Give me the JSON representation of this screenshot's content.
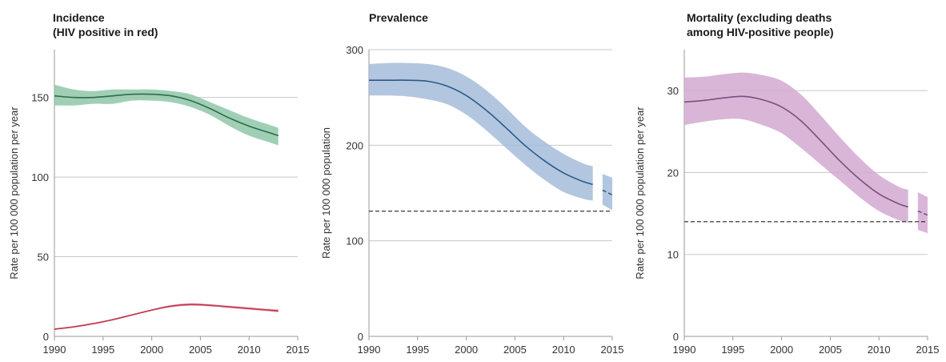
{
  "chart_data": [
    {
      "type": "area",
      "title_lines": [
        "Incidence",
        "(HIV positive in red)"
      ],
      "ylabel": "Rate per 100 000 population per year",
      "xlim": [
        1990,
        2015
      ],
      "ylim": [
        0,
        180
      ],
      "xticks": [
        1990,
        1995,
        2000,
        2005,
        2010,
        2015
      ],
      "yticks": [
        0,
        50,
        100,
        150
      ],
      "series": [
        {
          "color": "#2f6b4f",
          "band_color": "#8fc7a8",
          "x": [
            1990,
            1992,
            1994,
            1996,
            1998,
            2000,
            2002,
            2004,
            2006,
            2008,
            2010,
            2012,
            2013
          ],
          "values": [
            151,
            150,
            150,
            151,
            152,
            152,
            151,
            148,
            143,
            137,
            132,
            128,
            126
          ],
          "lower": [
            145,
            145,
            146,
            146,
            148,
            148,
            147,
            144,
            139,
            132,
            126,
            122,
            120
          ],
          "upper": [
            158,
            155,
            154,
            155,
            155,
            155,
            154,
            152,
            147,
            142,
            137,
            133,
            131
          ]
        },
        {
          "color": "#c0394f",
          "band_color": "#e89aa6",
          "x": [
            1990,
            1992,
            1994,
            1996,
            1998,
            2000,
            2002,
            2004,
            2006,
            2008,
            2010,
            2012,
            2013
          ],
          "values": [
            4.5,
            6,
            8,
            10.5,
            13.5,
            16.5,
            19,
            20,
            19.5,
            18.5,
            17.5,
            16.5,
            16
          ],
          "lower": [
            4,
            5.5,
            7.5,
            10,
            13,
            16,
            18.3,
            19.2,
            18.8,
            17.8,
            16.8,
            15.8,
            15
          ],
          "upper": [
            5,
            6.5,
            8.5,
            11,
            14,
            17,
            19.7,
            20.8,
            20.2,
            19.2,
            18.2,
            17.2,
            17
          ]
        }
      ]
    },
    {
      "type": "area",
      "title_lines": [
        "Prevalence"
      ],
      "ylabel": "Rate per 100 000 population",
      "xlim": [
        1990,
        2015
      ],
      "ylim": [
        0,
        300
      ],
      "xticks": [
        1990,
        1995,
        2000,
        2005,
        2010,
        2015
      ],
      "yticks": [
        0,
        100,
        200,
        300
      ],
      "target": 131,
      "series": [
        {
          "color": "#2a5a8a",
          "band_color": "#a6bcd9",
          "x": [
            1990,
            1992,
            1994,
            1996,
            1998,
            2000,
            2002,
            2004,
            2006,
            2008,
            2010,
            2012,
            2013
          ],
          "values": [
            268,
            268,
            268,
            267,
            262,
            252,
            237,
            219,
            200,
            184,
            171,
            162,
            159
          ],
          "lower": [
            252,
            252,
            251,
            248,
            243,
            232,
            216,
            198,
            180,
            164,
            151,
            144,
            142
          ],
          "upper": [
            285,
            286,
            286,
            285,
            281,
            272,
            258,
            240,
            220,
            204,
            191,
            181,
            178
          ]
        },
        {
          "color": "#2a5a8a",
          "band_color": "#a6bcd9",
          "dashed": true,
          "x": [
            2014,
            2015
          ],
          "values": [
            153,
            148
          ],
          "lower": [
            138,
            132
          ],
          "upper": [
            170,
            166
          ]
        }
      ]
    },
    {
      "type": "area",
      "title_lines": [
        "Mortality (excluding deaths",
        "among HIV-positive people)"
      ],
      "ylabel": "Rate per 100 000 population per year",
      "xlim": [
        1990,
        2015
      ],
      "ylim": [
        0,
        35
      ],
      "xticks": [
        1990,
        1995,
        2000,
        2005,
        2010,
        2015
      ],
      "yticks": [
        0,
        10,
        20,
        30
      ],
      "target": 14,
      "series": [
        {
          "color": "#7e4d80",
          "band_color": "#d2a9d0",
          "x": [
            1990,
            1992,
            1994,
            1996,
            1998,
            2000,
            2002,
            2004,
            2006,
            2008,
            2010,
            2012,
            2013
          ],
          "values": [
            28.6,
            28.8,
            29.1,
            29.3,
            28.9,
            28.0,
            26.3,
            23.9,
            21.4,
            19.2,
            17.4,
            16.2,
            15.8
          ],
          "lower": [
            25.8,
            26.2,
            26.5,
            26.5,
            25.8,
            24.8,
            23.0,
            21.0,
            19.0,
            17.0,
            15.3,
            14.2,
            13.9
          ],
          "upper": [
            31.6,
            31.7,
            32.0,
            32.2,
            31.9,
            31.2,
            29.5,
            27.0,
            24.3,
            21.8,
            19.7,
            18.3,
            17.9
          ]
        },
        {
          "color": "#7e4d80",
          "band_color": "#d2a9d0",
          "dashed": true,
          "x": [
            2014,
            2015
          ],
          "values": [
            15.3,
            14.8
          ],
          "lower": [
            13.0,
            12.6
          ],
          "upper": [
            17.6,
            17.0
          ]
        }
      ]
    }
  ]
}
